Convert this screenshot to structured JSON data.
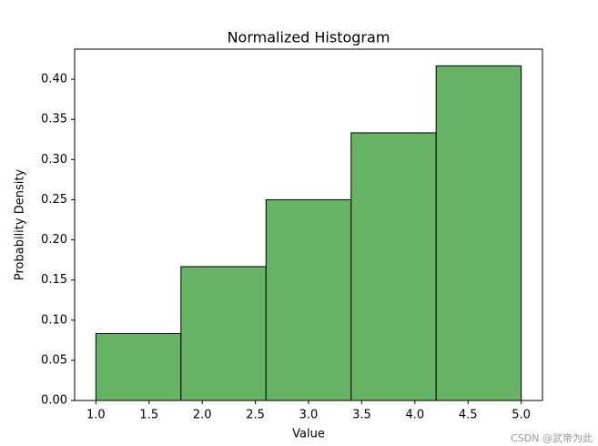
{
  "chart_data": {
    "type": "histogram",
    "title": "Normalized Histogram",
    "x_label": "Value",
    "y_label": "Probability Density",
    "bins": [
      1.0,
      1.8,
      2.6,
      3.4,
      4.2,
      5.0
    ],
    "values": [
      0.0833,
      0.1667,
      0.25,
      0.3333,
      0.4167
    ],
    "color": "#66b366",
    "edgecolor": "#000000",
    "xlim": [
      0.8,
      5.2
    ],
    "ylim": [
      0,
      0.4375
    ],
    "xticks": [
      {
        "value": 1,
        "label": "1.0"
      },
      1.5,
      {
        "value": 2,
        "label": "2.0"
      },
      2.5,
      {
        "value": 3,
        "label": "3.0"
      },
      3.5,
      {
        "value": 4,
        "label": "4.0"
      },
      4.5,
      {
        "value": 5,
        "label": "5.0"
      }
    ],
    "yticks": [
      {
        "value": 0,
        "label": "0.00"
      },
      0.05,
      {
        "value": 0.1,
        "label": "0.10"
      },
      0.15,
      {
        "value": 0.2,
        "label": "0.20"
      },
      0.25,
      {
        "value": 0.3,
        "label": "0.30"
      },
      0.35,
      {
        "value": 0.4,
        "label": "0.40"
      }
    ],
    "grid": false
  },
  "watermark": "CSDN @武帝为此"
}
